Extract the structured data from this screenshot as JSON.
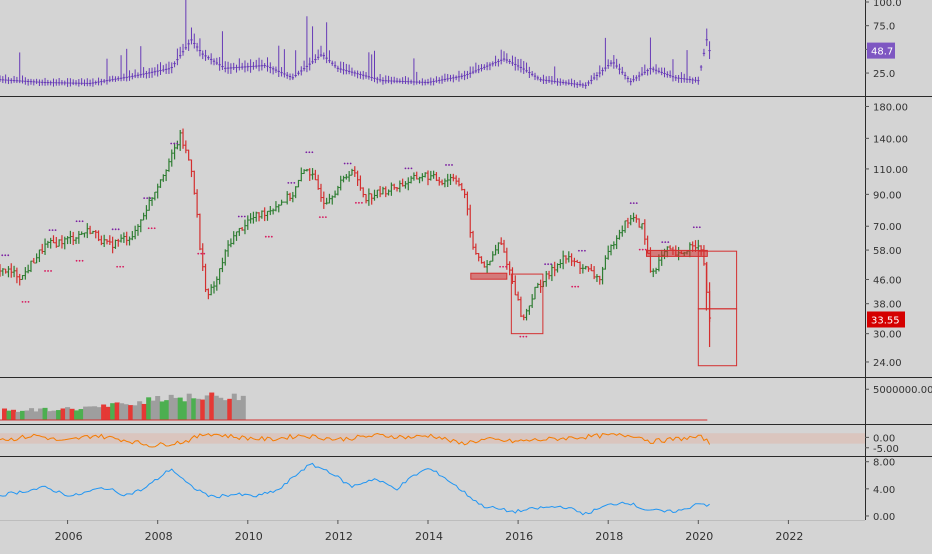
{
  "colors": {
    "background": "#d4d4d4",
    "separator": "#2a2a2a",
    "up_bar": "#2e7d32",
    "down_bar": "#d32f2f",
    "vix": "#673ab7",
    "oscillator": "#f57c00",
    "blue_line": "#2196f3",
    "volume_neutral": "#9e9e9e",
    "volume_up": "#4caf50",
    "volume_down": "#e53935",
    "price_badge": "#d50000",
    "vix_badge": "#7e57c2",
    "marker_up": "#7b1fa2",
    "marker_down": "#d81b60"
  },
  "badges": {
    "vix_last": "48.7",
    "price_last": "33.55"
  },
  "chart_data": [
    {
      "type": "bar",
      "name_hint": "top-pane",
      "title": "",
      "series": [
        {
          "values_anchor": [
            [
              2004.5,
              18
            ],
            [
              2005.5,
              15
            ],
            [
              2006.5,
              14
            ],
            [
              2007.5,
              22
            ],
            [
              2008.3,
              30
            ],
            [
              2008.75,
              60
            ],
            [
              2009.0,
              45
            ],
            [
              2009.5,
              30
            ],
            [
              2010.4,
              33
            ],
            [
              2011.0,
              20
            ],
            [
              2011.65,
              45
            ],
            [
              2012.0,
              30
            ],
            [
              2013.0,
              17
            ],
            [
              2014.0,
              15
            ],
            [
              2014.8,
              22
            ],
            [
              2015.7,
              40
            ],
            [
              2016.1,
              30
            ],
            [
              2016.5,
              18
            ],
            [
              2017.5,
              12
            ],
            [
              2018.1,
              37
            ],
            [
              2018.5,
              16
            ],
            [
              2018.95,
              30
            ],
            [
              2019.5,
              20
            ],
            [
              2020.0,
              17
            ],
            [
              2020.2,
              63
            ],
            [
              2020.25,
              48.7
            ]
          ]
        }
      ],
      "ylim": [
        5,
        100
      ],
      "y_ticks": [
        "100.0",
        "75.0",
        "50.0",
        "25.0"
      ],
      "y_tick_values": [
        100,
        75,
        50,
        25
      ],
      "last_value": 48.7,
      "scale": "linear"
    },
    {
      "type": "bar",
      "name_hint": "main-price-pane",
      "title": "",
      "scale": "log",
      "ylim": [
        22,
        185
      ],
      "y_ticks": [
        "180.00",
        "140.00",
        "110.00",
        "90.00",
        "70.00",
        "58.00",
        "46.00",
        "38.00",
        "30.00",
        "24.00"
      ],
      "y_tick_values": [
        180,
        140,
        110,
        90,
        70,
        58,
        46,
        38,
        30,
        24
      ],
      "last_value": 33.55,
      "price_anchor": [
        [
          2004.5,
          50
        ],
        [
          2005.0,
          47
        ],
        [
          2005.5,
          60
        ],
        [
          2006.0,
          63
        ],
        [
          2006.5,
          68
        ],
        [
          2006.9,
          60
        ],
        [
          2007.5,
          66
        ],
        [
          2007.9,
          90
        ],
        [
          2008.3,
          120
        ],
        [
          2008.5,
          142
        ],
        [
          2008.75,
          110
        ],
        [
          2008.95,
          55
        ],
        [
          2009.1,
          40
        ],
        [
          2009.3,
          45
        ],
        [
          2009.6,
          62
        ],
        [
          2010.0,
          73
        ],
        [
          2010.5,
          80
        ],
        [
          2011.0,
          90
        ],
        [
          2011.3,
          112
        ],
        [
          2011.7,
          85
        ],
        [
          2012.0,
          95
        ],
        [
          2012.3,
          110
        ],
        [
          2012.6,
          88
        ],
        [
          2013.0,
          92
        ],
        [
          2013.6,
          100
        ],
        [
          2013.9,
          105
        ],
        [
          2014.3,
          100
        ],
        [
          2014.6,
          104
        ],
        [
          2014.8,
          90
        ],
        [
          2015.0,
          58
        ],
        [
          2015.3,
          50
        ],
        [
          2015.6,
          62
        ],
        [
          2015.9,
          44
        ],
        [
          2016.1,
          33
        ],
        [
          2016.4,
          43
        ],
        [
          2016.7,
          48
        ],
        [
          2017.0,
          55
        ],
        [
          2017.5,
          50
        ],
        [
          2017.8,
          46
        ],
        [
          2018.2,
          66
        ],
        [
          2018.5,
          75
        ],
        [
          2018.75,
          70
        ],
        [
          2018.95,
          48
        ],
        [
          2019.3,
          58
        ],
        [
          2019.6,
          55
        ],
        [
          2019.9,
          62
        ],
        [
          2020.1,
          56
        ],
        [
          2020.2,
          40
        ],
        [
          2020.25,
          33.55
        ]
      ],
      "marker_days_up": [
        2004.55,
        2005.6,
        2006.2,
        2007.0,
        2007.7,
        2008.3,
        2009.8,
        2010.9,
        2011.3,
        2012.15,
        2013.5,
        2014.4,
        2016.6,
        2017.35,
        2018.5,
        2019.2,
        2019.9
      ],
      "marker_days_down": [
        2005.0,
        2005.5,
        2006.2,
        2007.1,
        2007.8,
        2008.9,
        2010.4,
        2011.6,
        2012.4,
        2015.6,
        2016.05,
        2017.2,
        2018.7
      ],
      "boxes": [
        {
          "x0": 2015.85,
          "x1": 2016.55,
          "y0": 48,
          "y1": 30
        },
        {
          "x0": 2020.0,
          "x1": 2020.85,
          "y0": 57.5,
          "y1": 36.5
        },
        {
          "x0": 2020.0,
          "x1": 2020.85,
          "y0": 36.5,
          "y1": 23.3
        }
      ],
      "zones": [
        {
          "x0": 2014.95,
          "x1": 2015.75,
          "y": 47.2
        },
        {
          "x0": 2018.85,
          "x1": 2020.2,
          "y": 56.5
        }
      ]
    },
    {
      "type": "bar",
      "name_hint": "volume-pane",
      "title": "",
      "y_ticks": [
        "5000000.0000"
      ],
      "y_tick_values": [
        5000000
      ],
      "ylim": [
        0,
        6500000
      ],
      "x_range": [
        2004.0,
        2009.9
      ],
      "values_anchor": [
        [
          2004.0,
          1500000
        ],
        [
          2005.0,
          1600000
        ],
        [
          2006.0,
          1800000
        ],
        [
          2006.8,
          2200000
        ],
        [
          2007.3,
          2600000
        ],
        [
          2007.8,
          3400000
        ],
        [
          2008.3,
          3900000
        ],
        [
          2008.8,
          3500000
        ],
        [
          2009.4,
          3900000
        ],
        [
          2009.9,
          4000000
        ]
      ],
      "baseline_end": 2020.2
    },
    {
      "type": "line",
      "name_hint": "oscillator-pane",
      "title": "",
      "y_ticks": [
        "0.00",
        "-5.00"
      ],
      "y_tick_values": [
        0,
        -5
      ],
      "ylim": [
        -8,
        5
      ],
      "band": [
        -3,
        2
      ],
      "anchor": [
        [
          2004.0,
          1
        ],
        [
          2004.7,
          -1
        ],
        [
          2005.3,
          1
        ],
        [
          2005.9,
          -2
        ],
        [
          2006.6,
          1
        ],
        [
          2007.2,
          -1
        ],
        [
          2007.9,
          -4
        ],
        [
          2008.6,
          -2
        ],
        [
          2009.1,
          2
        ],
        [
          2009.8,
          0
        ],
        [
          2010.5,
          -1
        ],
        [
          2011.2,
          1
        ],
        [
          2012.0,
          -1
        ],
        [
          2012.9,
          1
        ],
        [
          2013.6,
          0
        ],
        [
          2014.1,
          1
        ],
        [
          2014.7,
          -3
        ],
        [
          2015.3,
          -1
        ],
        [
          2015.9,
          -2
        ],
        [
          2016.6,
          -1
        ],
        [
          2017.3,
          0
        ],
        [
          2018.0,
          1
        ],
        [
          2018.6,
          1
        ],
        [
          2018.95,
          -2
        ],
        [
          2019.4,
          -1
        ],
        [
          2019.9,
          0
        ],
        [
          2020.1,
          0
        ],
        [
          2020.25,
          -3
        ]
      ]
    },
    {
      "type": "line",
      "name_hint": "bottom-pane",
      "title": "",
      "y_ticks": [
        "8.00",
        "4.00",
        "0.00"
      ],
      "y_tick_values": [
        8,
        4,
        0
      ],
      "ylim": [
        -0.3,
        8.4
      ],
      "anchor": [
        [
          2004.0,
          2.5
        ],
        [
          2004.9,
          3.5
        ],
        [
          2005.5,
          4.2
        ],
        [
          2006.1,
          2.9
        ],
        [
          2006.8,
          4.2
        ],
        [
          2007.3,
          3.1
        ],
        [
          2007.7,
          4.0
        ],
        [
          2008.3,
          7.0
        ],
        [
          2008.7,
          4.5
        ],
        [
          2009.2,
          2.8
        ],
        [
          2009.7,
          3.2
        ],
        [
          2010.2,
          2.9
        ],
        [
          2010.7,
          3.9
        ],
        [
          2011.2,
          6.8
        ],
        [
          2011.4,
          7.6
        ],
        [
          2011.8,
          6.6
        ],
        [
          2012.3,
          4.3
        ],
        [
          2012.8,
          5.5
        ],
        [
          2013.3,
          4.0
        ],
        [
          2013.7,
          6.0
        ],
        [
          2014.0,
          7.0
        ],
        [
          2014.3,
          6.0
        ],
        [
          2014.7,
          4.0
        ],
        [
          2015.2,
          1.5
        ],
        [
          2015.9,
          0.6
        ],
        [
          2016.5,
          1.2
        ],
        [
          2017.0,
          1.4
        ],
        [
          2017.5,
          0.3
        ],
        [
          2018.0,
          1.6
        ],
        [
          2018.4,
          2.1
        ],
        [
          2018.8,
          1.0
        ],
        [
          2019.3,
          0.6
        ],
        [
          2019.7,
          0.9
        ],
        [
          2020.0,
          2.0
        ],
        [
          2020.25,
          1.5
        ]
      ]
    }
  ],
  "x_axis": {
    "ticks": [
      "2006",
      "2008",
      "2010",
      "2012",
      "2014",
      "2016",
      "2018",
      "2020",
      "2022"
    ],
    "tick_values": [
      2006,
      2008,
      2010,
      2012,
      2014,
      2016,
      2018,
      2020,
      2022
    ],
    "range": [
      2004.5,
      2023.7
    ]
  }
}
